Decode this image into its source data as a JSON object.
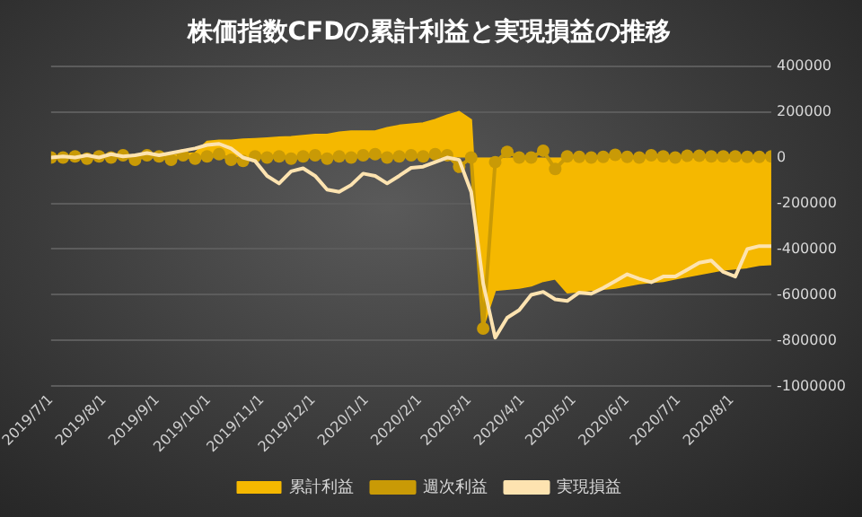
{
  "chart_data": {
    "type": "line",
    "title": "株価指数CFDの累計利益と実現損益の推移",
    "x": [
      "2019-07-01",
      "2019-07-08",
      "2019-07-15",
      "2019-07-22",
      "2019-07-29",
      "2019-08-05",
      "2019-08-12",
      "2019-08-19",
      "2019-08-26",
      "2019-09-02",
      "2019-09-09",
      "2019-09-16",
      "2019-09-23",
      "2019-09-30",
      "2019-10-07",
      "2019-10-14",
      "2019-10-21",
      "2019-10-28",
      "2019-11-04",
      "2019-11-11",
      "2019-11-18",
      "2019-11-25",
      "2019-12-02",
      "2019-12-09",
      "2019-12-16",
      "2019-12-23",
      "2019-12-30",
      "2020-01-06",
      "2020-01-13",
      "2020-01-20",
      "2020-01-27",
      "2020-02-03",
      "2020-02-10",
      "2020-02-17",
      "2020-02-24",
      "2020-03-02",
      "2020-03-09",
      "2020-03-16",
      "2020-03-23",
      "2020-03-30",
      "2020-04-06",
      "2020-04-13",
      "2020-04-20",
      "2020-04-27",
      "2020-05-04",
      "2020-05-11",
      "2020-05-18",
      "2020-05-25",
      "2020-06-01",
      "2020-06-08",
      "2020-06-15",
      "2020-06-22",
      "2020-06-29",
      "2020-07-06",
      "2020-07-13",
      "2020-07-20",
      "2020-07-27",
      "2020-08-03",
      "2020-08-10",
      "2020-08-17",
      "2020-08-24"
    ],
    "series": [
      {
        "name": "累計利益",
        "type": "area",
        "color": "#f5b800",
        "marker": "none",
        "values": [
          0,
          0,
          0,
          5000,
          0,
          5000,
          0,
          5000,
          10000,
          5000,
          10000,
          15000,
          20000,
          70000,
          75000,
          75000,
          80000,
          82000,
          85000,
          88000,
          90000,
          95000,
          100000,
          100000,
          110000,
          115000,
          115000,
          115000,
          130000,
          140000,
          145000,
          150000,
          165000,
          185000,
          200000,
          165000,
          -740000,
          -580000,
          -575000,
          -570000,
          -560000,
          -540000,
          -530000,
          -590000,
          -585000,
          -580000,
          -575000,
          -570000,
          -560000,
          -550000,
          -545000,
          -540000,
          -530000,
          -520000,
          -510000,
          -500000,
          -490000,
          -485000,
          -480000,
          -470000,
          -467000
        ]
      },
      {
        "name": "週次利益",
        "type": "line",
        "color": "#c99a06",
        "marker": "circle",
        "values": [
          0,
          0,
          5000,
          -5000,
          5000,
          0,
          10000,
          -10000,
          10000,
          5000,
          -10000,
          10000,
          -5000,
          5000,
          15000,
          -10000,
          -15000,
          5000,
          0,
          5000,
          -5000,
          5000,
          10000,
          -5000,
          5000,
          0,
          10000,
          15000,
          0,
          5000,
          10000,
          5000,
          15000,
          10000,
          -40000,
          0,
          -747000,
          -20000,
          25000,
          0,
          0,
          30000,
          -50000,
          5000,
          3000,
          0,
          3000,
          12000,
          3000,
          0,
          10000,
          5000,
          0,
          8000,
          8000,
          5000,
          5000,
          5000,
          3000,
          3000,
          5000
        ]
      },
      {
        "name": "実現損益",
        "type": "line",
        "color": "#fde3b0",
        "marker": "none",
        "values": [
          0,
          5000,
          0,
          10000,
          0,
          15000,
          5000,
          10000,
          20000,
          10000,
          20000,
          30000,
          40000,
          55000,
          60000,
          40000,
          0,
          -15000,
          -80000,
          -113000,
          -60000,
          -47000,
          -80000,
          -140000,
          -150000,
          -120000,
          -70000,
          -80000,
          -113000,
          -80000,
          -45000,
          -40000,
          -20000,
          0,
          -10000,
          -150000,
          -550000,
          -787000,
          -700000,
          -667000,
          -600000,
          -587000,
          -620000,
          -627000,
          -590000,
          -595000,
          -570000,
          -540000,
          -510000,
          -530000,
          -545000,
          -520000,
          -520000,
          -490000,
          -460000,
          -450000,
          -500000,
          -520000,
          -400000,
          -387000,
          -387000
        ]
      }
    ],
    "xlim": [
      "2019-07-01",
      "2020-08-24"
    ],
    "xticks": [
      {
        "value": "2019-07-01",
        "label": "2019/7/1"
      },
      {
        "value": "2019-08-01",
        "label": "2019/8/1"
      },
      {
        "value": "2019-09-01",
        "label": "2019/9/1"
      },
      {
        "value": "2019-10-01",
        "label": "2019/10/1"
      },
      {
        "value": "2019-11-01",
        "label": "2019/11/1"
      },
      {
        "value": "2019-12-01",
        "label": "2019/12/1"
      },
      {
        "value": "2020-01-01",
        "label": "2020/1/1"
      },
      {
        "value": "2020-02-01",
        "label": "2020/2/1"
      },
      {
        "value": "2020-03-01",
        "label": "2020/3/1"
      },
      {
        "value": "2020-04-01",
        "label": "2020/4/1"
      },
      {
        "value": "2020-05-01",
        "label": "2020/5/1"
      },
      {
        "value": "2020-06-01",
        "label": "2020/6/1"
      },
      {
        "value": "2020-07-01",
        "label": "2020/7/1"
      },
      {
        "value": "2020-08-01",
        "label": "2020/8/1"
      }
    ],
    "ylim": [
      -1000000,
      400000
    ],
    "yticks": [
      -1000000,
      -800000,
      -600000,
      -400000,
      -200000,
      0,
      200000,
      400000
    ],
    "grid": "y",
    "legend": "bottom"
  }
}
